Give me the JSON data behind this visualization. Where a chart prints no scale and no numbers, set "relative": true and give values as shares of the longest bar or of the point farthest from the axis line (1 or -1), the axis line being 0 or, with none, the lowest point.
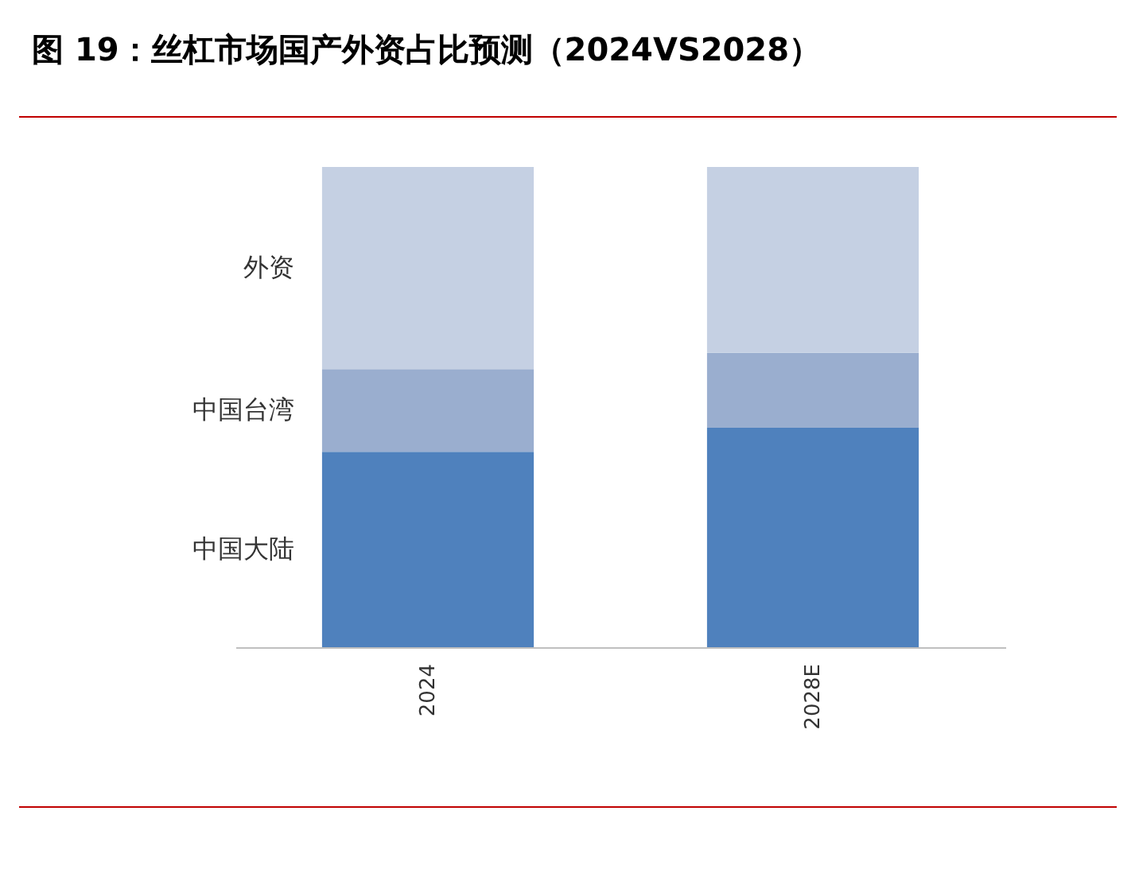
{
  "chart_data": {
    "type": "bar",
    "title": "图 19：丝杠市场国产外资占比预测（2024VS2028）",
    "categories": [
      "2024",
      "2028E"
    ],
    "stacked": true,
    "relative": true,
    "series": [
      {
        "name": "中国大陆",
        "color": "#4f81bd",
        "values": [
          0.407,
          0.457
        ]
      },
      {
        "name": "中国台湾",
        "color": "#9aaecf",
        "values": [
          0.172,
          0.156
        ]
      },
      {
        "name": "外资",
        "color": "#c5d0e3",
        "values": [
          0.421,
          0.387
        ]
      }
    ]
  }
}
